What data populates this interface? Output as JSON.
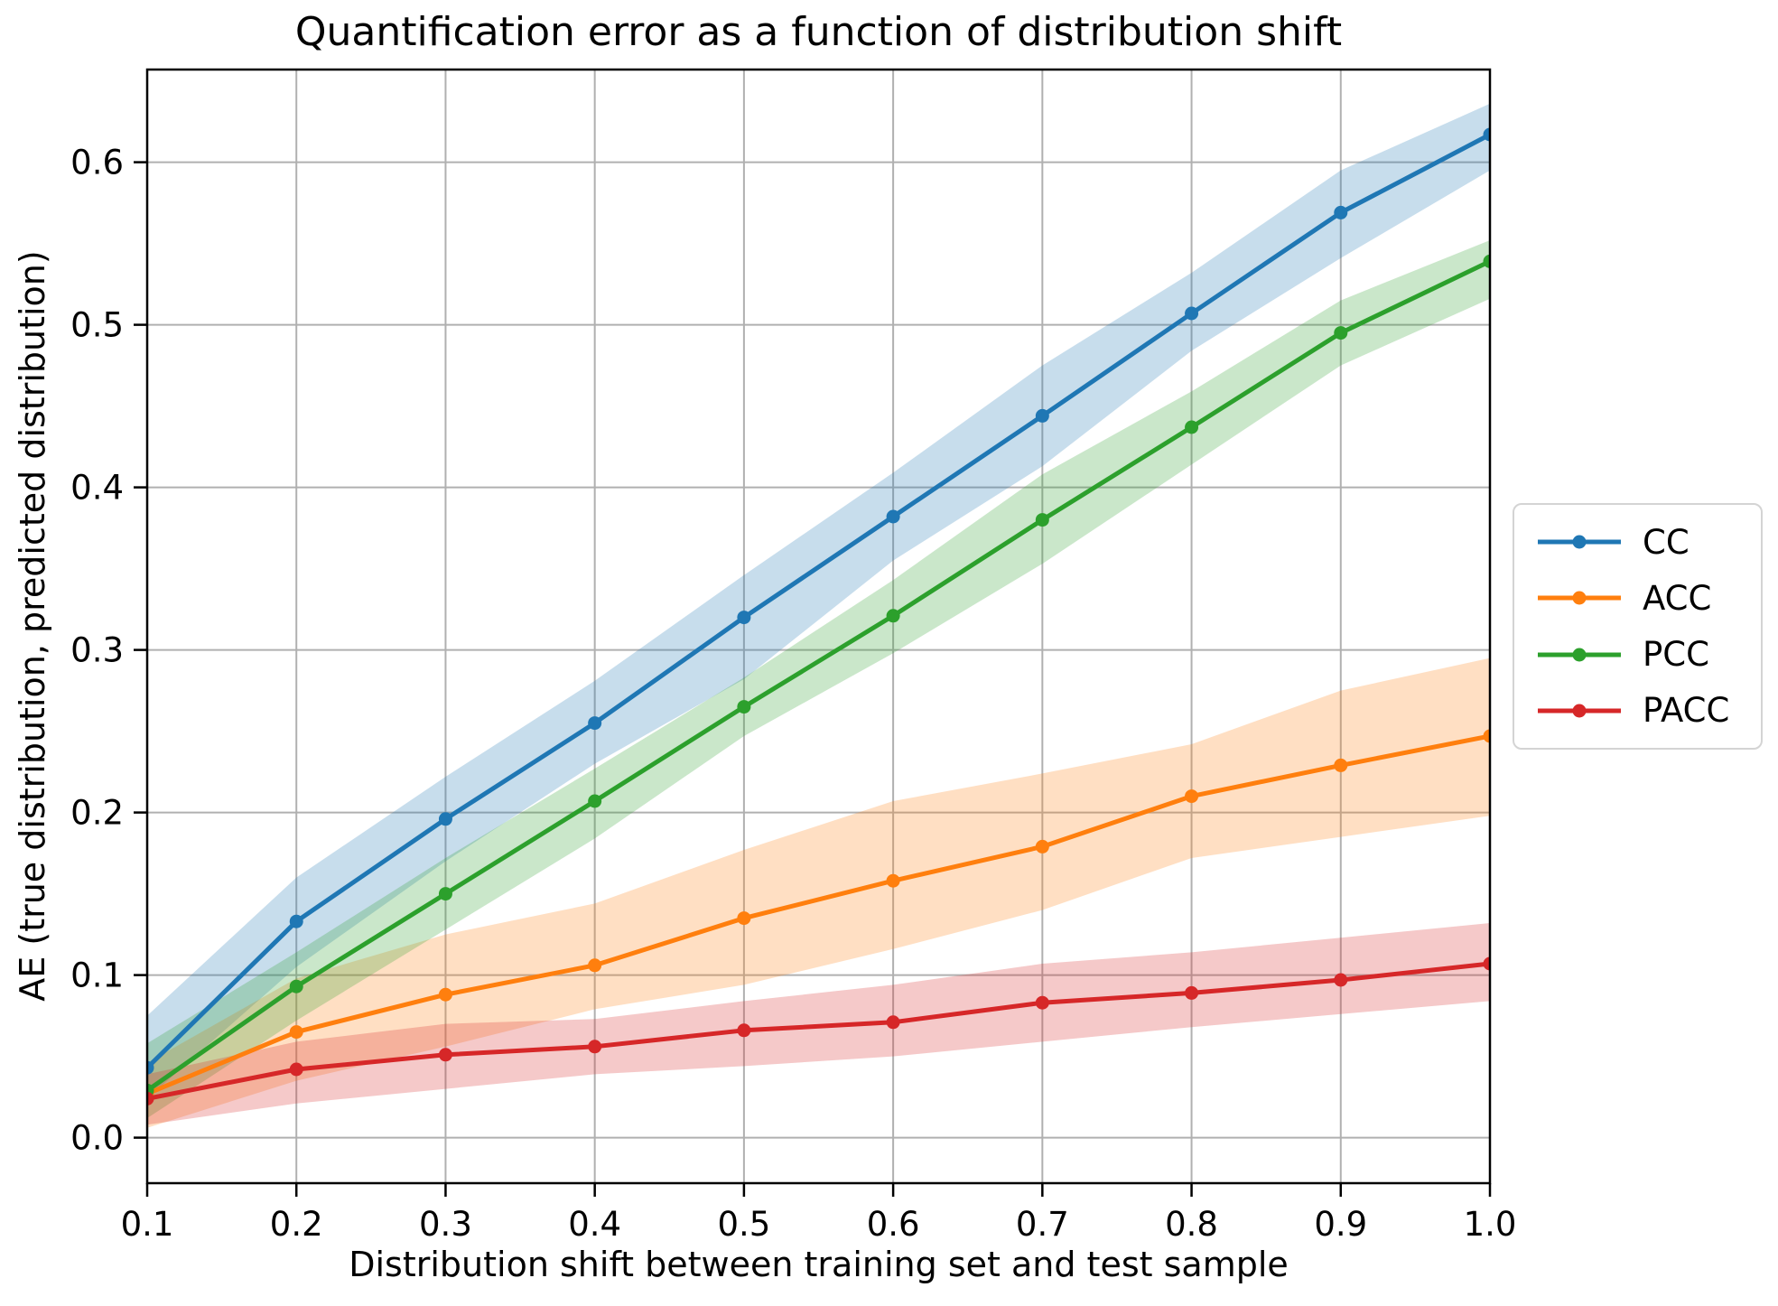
{
  "chart": {
    "title": "Quantification error as a function of distribution shift",
    "xlabel": "Distribution shift between training set and test sample",
    "ylabel": "AE (true distribution, predicted distribution)"
  },
  "chart_data": {
    "type": "line",
    "title": "Quantification error as a function of distribution shift",
    "xlabel": "Distribution shift between training set and test sample",
    "ylabel": "AE (true distribution, predicted distribution)",
    "x": [
      0.1,
      0.2,
      0.3,
      0.4,
      0.5,
      0.6,
      0.7,
      0.8,
      0.9,
      1.0
    ],
    "xlim": [
      0.1,
      1.0
    ],
    "ylim": [
      -0.028,
      0.657
    ],
    "xticks": [
      0.1,
      0.2,
      0.3,
      0.4,
      0.5,
      0.6,
      0.7,
      0.8,
      0.9,
      1.0
    ],
    "xtick_labels": [
      "0.1",
      "0.2",
      "0.3",
      "0.4",
      "0.5",
      "0.6",
      "0.7",
      "0.8",
      "0.9",
      "1.0"
    ],
    "yticks": [
      0.0,
      0.1,
      0.2,
      0.3,
      0.4,
      0.5,
      0.6
    ],
    "ytick_labels": [
      "0.0",
      "0.1",
      "0.2",
      "0.3",
      "0.4",
      "0.5",
      "0.6"
    ],
    "grid": true,
    "grid_color": "#b0b0b0",
    "band_alpha": 0.25,
    "legend_position": "center right, outside axes",
    "series": [
      {
        "name": "CC",
        "color": "#1f77b4",
        "values": [
          0.043,
          0.133,
          0.196,
          0.255,
          0.32,
          0.382,
          0.444,
          0.507,
          0.569,
          0.617
        ],
        "band_low": [
          0.024,
          0.105,
          0.17,
          0.23,
          0.282,
          0.355,
          0.413,
          0.484,
          0.541,
          0.595
        ],
        "band_high": [
          0.075,
          0.16,
          0.222,
          0.281,
          0.346,
          0.409,
          0.475,
          0.532,
          0.595,
          0.636
        ]
      },
      {
        "name": "ACC",
        "color": "#ff7f0e",
        "values": [
          0.027,
          0.065,
          0.088,
          0.106,
          0.135,
          0.158,
          0.179,
          0.21,
          0.229,
          0.247
        ],
        "band_low": [
          0.006,
          0.035,
          0.056,
          0.079,
          0.094,
          0.116,
          0.14,
          0.172,
          0.185,
          0.198
        ],
        "band_high": [
          0.046,
          0.098,
          0.125,
          0.144,
          0.177,
          0.207,
          0.224,
          0.242,
          0.275,
          0.295
        ]
      },
      {
        "name": "PCC",
        "color": "#2ca02c",
        "values": [
          0.029,
          0.093,
          0.15,
          0.207,
          0.265,
          0.321,
          0.38,
          0.437,
          0.495,
          0.539
        ],
        "band_low": [
          0.012,
          0.072,
          0.128,
          0.184,
          0.247,
          0.298,
          0.353,
          0.414,
          0.475,
          0.516
        ],
        "band_high": [
          0.058,
          0.114,
          0.172,
          0.227,
          0.283,
          0.343,
          0.408,
          0.459,
          0.515,
          0.552
        ]
      },
      {
        "name": "PACC",
        "color": "#d62728",
        "values": [
          0.024,
          0.042,
          0.051,
          0.056,
          0.066,
          0.071,
          0.083,
          0.089,
          0.097,
          0.107
        ],
        "band_low": [
          0.008,
          0.021,
          0.03,
          0.039,
          0.044,
          0.05,
          0.059,
          0.068,
          0.076,
          0.084
        ],
        "band_high": [
          0.039,
          0.059,
          0.07,
          0.073,
          0.084,
          0.094,
          0.107,
          0.114,
          0.123,
          0.132
        ]
      }
    ]
  }
}
